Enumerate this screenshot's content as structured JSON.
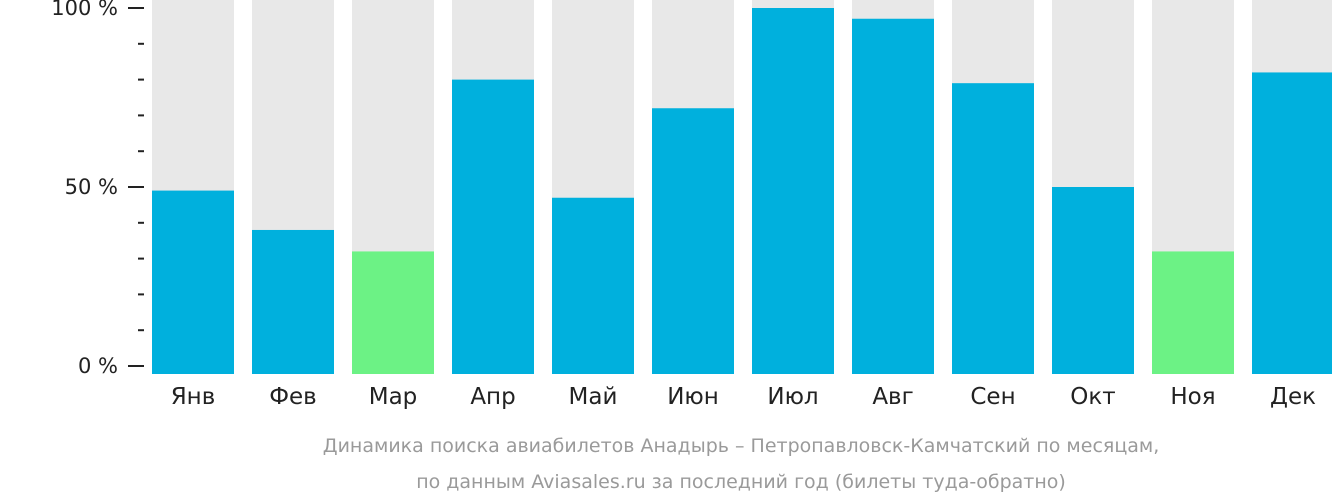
{
  "chart_data": {
    "type": "bar",
    "categories": [
      "Янв",
      "Фев",
      "Мар",
      "Апр",
      "Май",
      "Июн",
      "Июл",
      "Авг",
      "Сен",
      "Окт",
      "Ноя",
      "Дек"
    ],
    "values": [
      49,
      38,
      32,
      80,
      47,
      72,
      100,
      97,
      79,
      50,
      32,
      82
    ],
    "ylim": [
      0,
      100
    ],
    "y_ticks": [
      "0 %",
      "50 %",
      "100 %"
    ],
    "caption_lines": [
      "Динамика поиска авиабилетов Анадырь – Петропавловск-Камчатский по месяцам,",
      "по данным Aviasales.ru за последний год (билеты туда-обратно)"
    ],
    "colors": {
      "bar": "#00b0dd",
      "bar_low": "#6cf285",
      "background_column": "#e8e8e8",
      "axis": "#222222",
      "caption": "#9a9a9a"
    },
    "low_months": [
      "Мар",
      "Ноя"
    ]
  }
}
